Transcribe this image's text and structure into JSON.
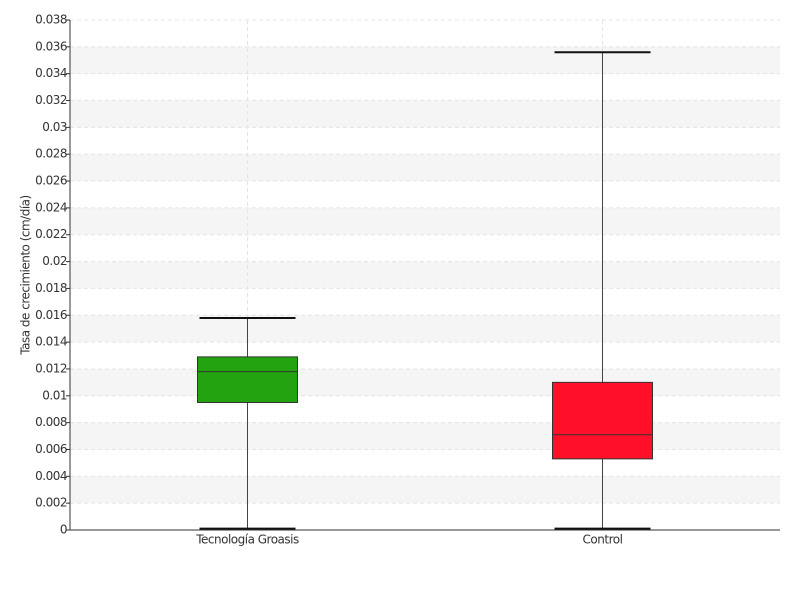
{
  "chart_data": {
    "type": "box",
    "y_label": "Tasa de crecimiento (cm/día)",
    "categories": [
      "Tecnología Groasis",
      "Control"
    ],
    "boxes": [
      {
        "min": 0.0001,
        "q1": 0.0095,
        "median": 0.0118,
        "q3": 0.0129,
        "max": 0.0158,
        "color": "#22a30f"
      },
      {
        "min": 0.0001,
        "q1": 0.0053,
        "median": 0.0071,
        "q3": 0.011,
        "max": 0.0356,
        "color": "#ff0f28"
      }
    ],
    "ylim": [
      0,
      0.038
    ],
    "yticks": [
      0,
      0.002,
      0.004,
      0.006,
      0.008,
      0.01,
      0.012,
      0.014,
      0.016,
      0.018,
      0.02,
      0.022,
      0.024,
      0.026,
      0.028,
      0.03,
      0.032,
      0.034,
      0.036,
      0.038
    ],
    "grid": true
  }
}
